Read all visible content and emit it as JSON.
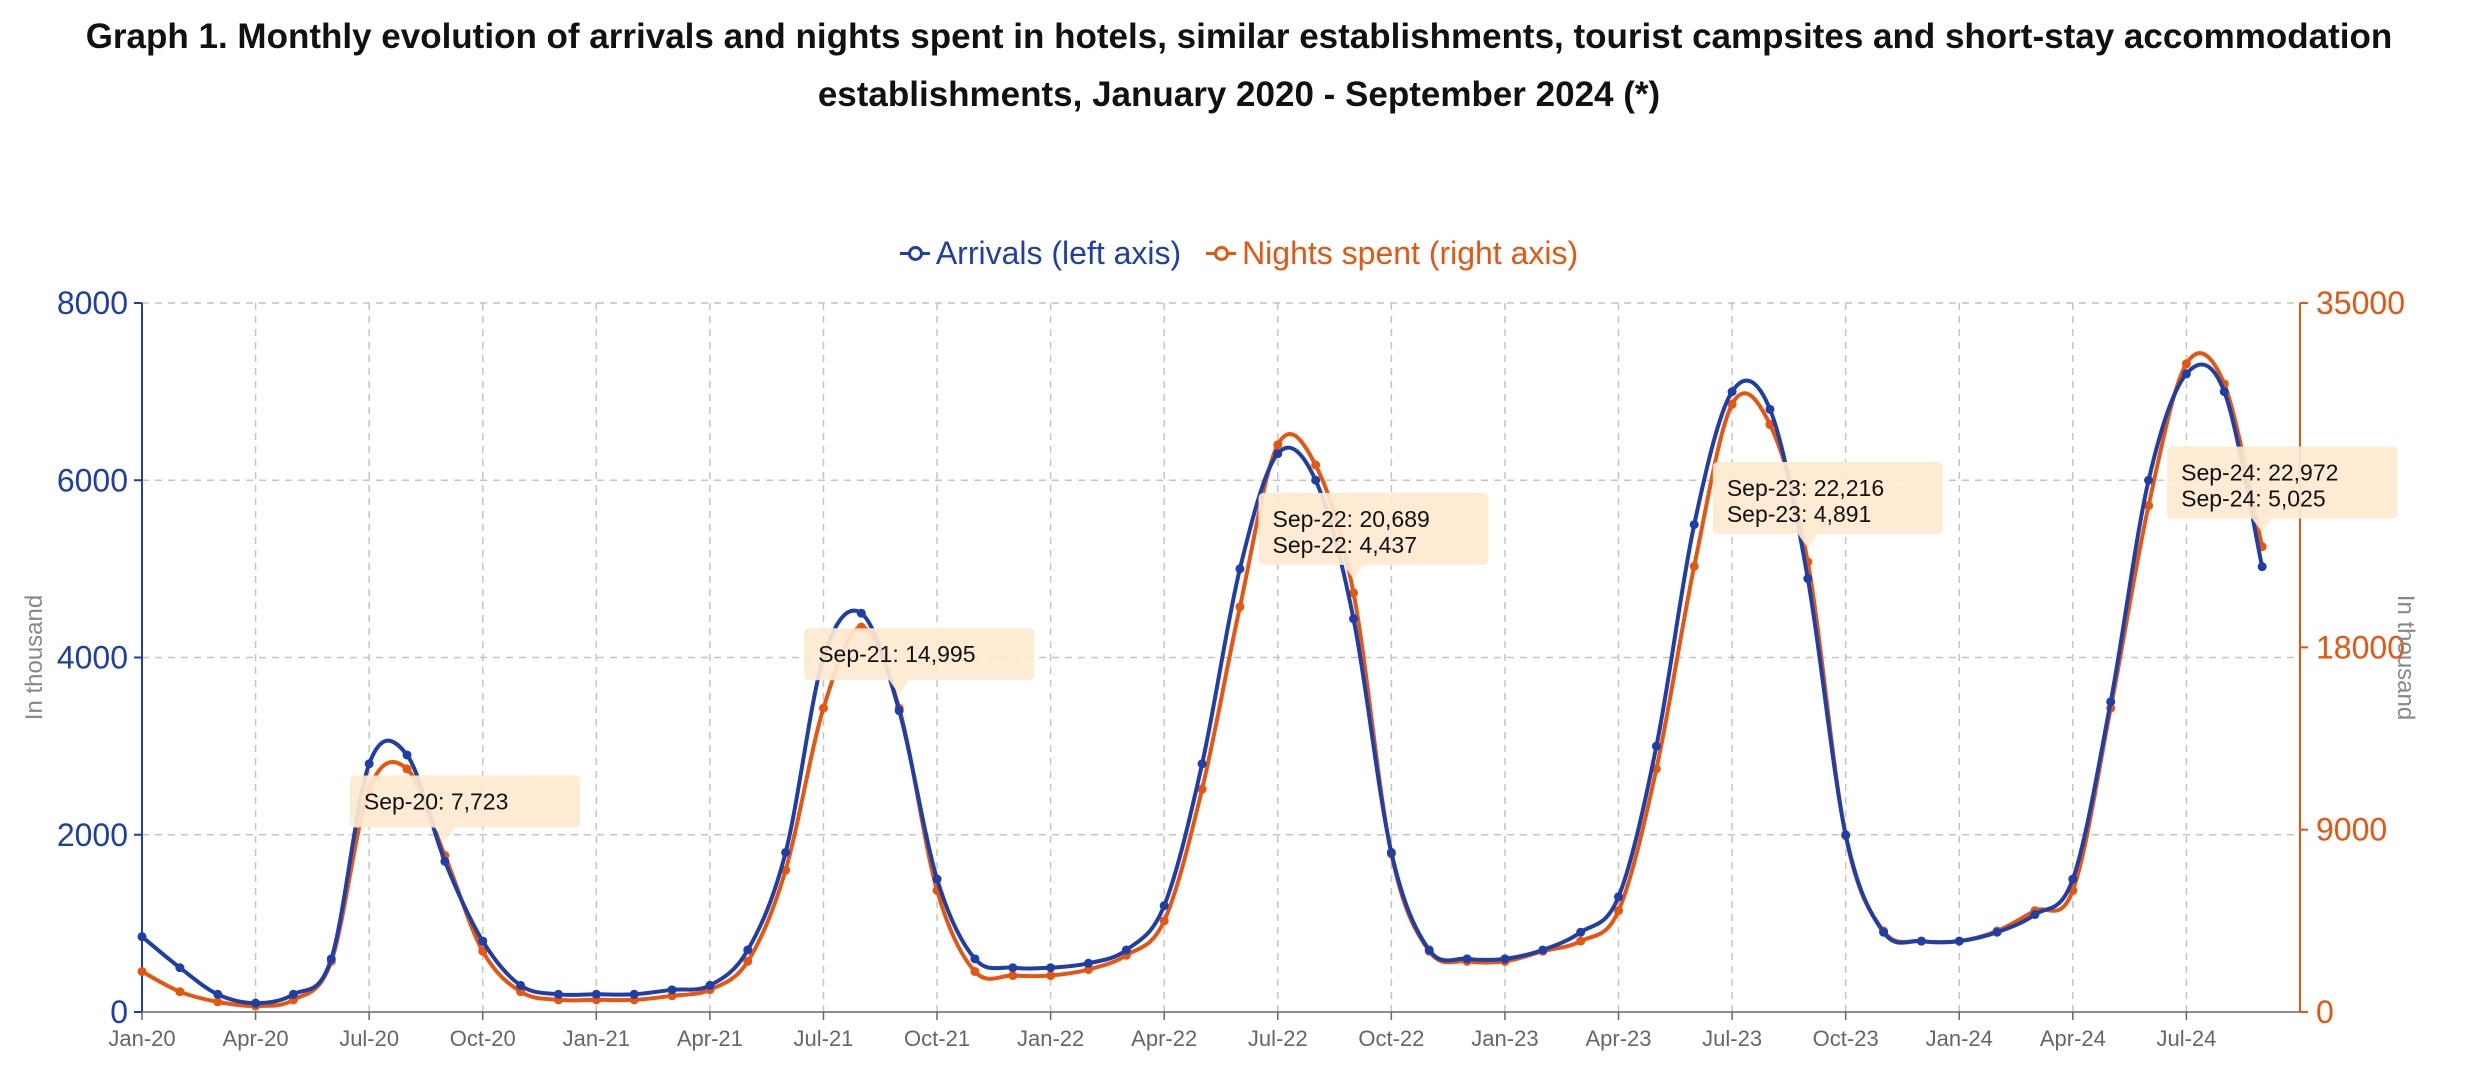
{
  "chart_data": {
    "type": "line",
    "title": "Graph 1. Monthly evolution of arrivals and nights spent in hotels, similar establishments, tourist campsites and short-stay accommodation establishments, January 2020 - September 2024 (*)",
    "ylabel_left": "In thousand",
    "ylabel_right": "In thousand",
    "ylim_left": [
      0,
      8000
    ],
    "ylim_right": [
      0,
      35000
    ],
    "yticks_left": [
      "0",
      "2000",
      "4000",
      "6000",
      "8000"
    ],
    "yticks_right": [
      "0",
      "9000",
      "18000",
      "35000"
    ],
    "x_tick_labels": [
      "Jan-20",
      "Apr-20",
      "Jul-20",
      "Oct-20",
      "Jan-21",
      "Apr-21",
      "Jul-21",
      "Oct-21",
      "Jan-22",
      "Apr-22",
      "Jul-22",
      "Oct-22",
      "Jan-23",
      "Apr-23",
      "Jul-23",
      "Oct-23",
      "Jan-24",
      "Apr-24",
      "Jul-24"
    ],
    "legend": [
      "Arrivals (left axis)",
      "Nights spent (right axis)"
    ],
    "grid": true,
    "colors": {
      "arrivals": "#1f3fa8",
      "nights": "#e8550f",
      "tooltip_bg": "#fde9d0"
    },
    "series": [
      {
        "name": "Arrivals (left axis)",
        "axis": "left",
        "values": [
          850,
          500,
          200,
          100,
          200,
          600,
          2800,
          2900,
          1700,
          800,
          300,
          200,
          200,
          200,
          250,
          300,
          700,
          1800,
          4000,
          4500,
          3400,
          1500,
          600,
          500,
          500,
          550,
          700,
          1200,
          2800,
          5000,
          6300,
          6000,
          4437,
          1800,
          700,
          600,
          600,
          700,
          900,
          1300,
          3000,
          5500,
          7000,
          6800,
          4891,
          2000,
          900,
          800,
          800,
          900,
          1100,
          1500,
          3500,
          6000,
          7200,
          7000,
          5025
        ]
      },
      {
        "name": "Nights spent (right axis)",
        "axis": "right",
        "values": [
          2000,
          1000,
          500,
          300,
          600,
          2500,
          11000,
          12000,
          7723,
          3000,
          1000,
          600,
          600,
          600,
          800,
          1100,
          2500,
          7000,
          15000,
          19000,
          14995,
          6000,
          2000,
          1800,
          1800,
          2100,
          2800,
          4500,
          11000,
          20000,
          28000,
          27000,
          20689,
          7800,
          3000,
          2500,
          2500,
          3000,
          3500,
          5000,
          12000,
          22000,
          30000,
          29000,
          22216,
          8700,
          4000,
          3500,
          3500,
          4000,
          5000,
          6000,
          15000,
          25000,
          32000,
          31000,
          22972
        ]
      }
    ],
    "annotations": [
      {
        "lines": [
          "Sep-20: 7,723"
        ]
      },
      {
        "lines": [
          "Sep-21: 14,995"
        ]
      },
      {
        "lines": [
          "Sep-22: 20,689",
          "Sep-22: 4,437"
        ]
      },
      {
        "lines": [
          "Sep-23: 22,216",
          "Sep-23: 4,891"
        ]
      },
      {
        "lines": [
          "Sep-24: 22,972",
          "Sep-24: 5,025"
        ]
      }
    ]
  }
}
